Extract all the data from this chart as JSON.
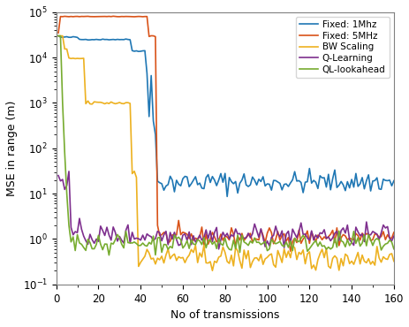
{
  "title": "",
  "xlabel": "No of transmissions",
  "ylabel": "MSE in range (m)",
  "xlim": [
    0,
    160
  ],
  "ylim_log": [
    -1,
    5
  ],
  "legend": [
    "Fixed: 1Mhz",
    "Fixed: 5MHz",
    "BW Scaling",
    "Q-Learning",
    "QL-lookahead"
  ],
  "colors": [
    "#1f77b4",
    "#d95319",
    "#edb120",
    "#7e2f8e",
    "#77ac30"
  ],
  "seed": 42
}
